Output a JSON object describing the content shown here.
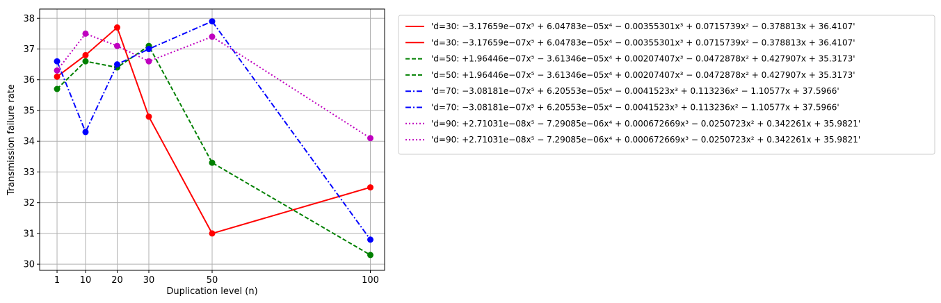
{
  "chart_data": {
    "type": "line",
    "title": "",
    "xlabel": "Duplication level (n)",
    "ylabel": "Transmission failure rate",
    "x": [
      1,
      10,
      20,
      30,
      50,
      100
    ],
    "xlim": [
      -4.5,
      104.5
    ],
    "ylim": [
      29.8,
      38.3
    ],
    "xticks": [
      1,
      10,
      20,
      30,
      50,
      100
    ],
    "yticks": [
      30,
      31,
      32,
      33,
      34,
      35,
      36,
      37,
      38
    ],
    "grid": true,
    "legend_position": "outside right, top",
    "series": [
      {
        "name": "'d=30: −3.17659e−07x⁵ + 6.04783e−05x⁴ − 0.00355301x³ + 0.0715739x² − 0.378813x + 36.4107'",
        "values": [
          36.1,
          36.8,
          37.7,
          34.8,
          31.0,
          32.5
        ],
        "color": "#ff0000",
        "linestyle": "solid"
      },
      {
        "name": "'d=50: +1.96446e−07x⁵ − 3.61346e−05x⁴ + 0.00207407x³ − 0.0472878x² + 0.427907x + 35.3173'",
        "values": [
          35.7,
          36.6,
          36.4,
          37.1,
          33.3,
          30.3
        ],
        "color": "#008000",
        "linestyle": "dashed"
      },
      {
        "name": "'d=70: −3.08181e−07x⁵ + 6.20553e−05x⁴ − 0.0041523x³ + 0.113236x² − 1.10577x + 37.5966'",
        "values": [
          36.6,
          34.3,
          36.5,
          37.0,
          37.9,
          30.8
        ],
        "color": "#0000ff",
        "linestyle": "dashdot"
      },
      {
        "name": "'d=90: +2.71031e−08x⁵ − 7.29085e−06x⁴ + 0.000672669x³ − 0.0250723x² + 0.342261x + 35.9821'",
        "values": [
          36.3,
          37.5,
          37.1,
          36.6,
          37.4,
          34.1
        ],
        "color": "#bf00bf",
        "linestyle": "dotted"
      }
    ]
  }
}
